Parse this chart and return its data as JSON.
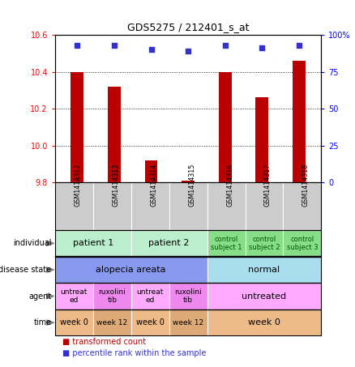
{
  "title": "GDS5275 / 212401_s_at",
  "samples": [
    "GSM1414312",
    "GSM1414313",
    "GSM1414314",
    "GSM1414315",
    "GSM1414316",
    "GSM1414317",
    "GSM1414318"
  ],
  "bar_values": [
    10.4,
    10.32,
    9.92,
    9.81,
    10.4,
    10.26,
    10.46
  ],
  "percentile_values": [
    93,
    93,
    90,
    89,
    93,
    91,
    93
  ],
  "ylim_left": [
    9.8,
    10.6
  ],
  "ylim_right": [
    0,
    100
  ],
  "yticks_left": [
    9.8,
    10.0,
    10.2,
    10.4,
    10.6
  ],
  "yticks_right": [
    0,
    25,
    50,
    75,
    100
  ],
  "ytick_labels_right": [
    "0",
    "25",
    "50",
    "75",
    "100%"
  ],
  "bar_color": "#bb0000",
  "dot_color": "#3333cc",
  "background_color": "#ffffff",
  "xticklabel_bg": "#cccccc",
  "annotation_rows": [
    {
      "label": "individual",
      "cells": [
        {
          "text": "patient 1",
          "span": 2,
          "color": "#bbeecc",
          "text_color": "#000000",
          "fontsize": 8
        },
        {
          "text": "patient 2",
          "span": 2,
          "color": "#bbeecc",
          "text_color": "#000000",
          "fontsize": 8
        },
        {
          "text": "control\nsubject 1",
          "span": 1,
          "color": "#88dd88",
          "text_color": "#005500",
          "fontsize": 6
        },
        {
          "text": "control\nsubject 2",
          "span": 1,
          "color": "#88dd88",
          "text_color": "#005500",
          "fontsize": 6
        },
        {
          "text": "control\nsubject 3",
          "span": 1,
          "color": "#88dd88",
          "text_color": "#005500",
          "fontsize": 6
        }
      ]
    },
    {
      "label": "disease state",
      "cells": [
        {
          "text": "alopecia areata",
          "span": 4,
          "color": "#8899ee",
          "text_color": "#000000",
          "fontsize": 8
        },
        {
          "text": "normal",
          "span": 3,
          "color": "#aaddee",
          "text_color": "#000000",
          "fontsize": 8
        }
      ]
    },
    {
      "label": "agent",
      "cells": [
        {
          "text": "untreat\ned",
          "span": 1,
          "color": "#ffaaff",
          "text_color": "#000000",
          "fontsize": 6.5
        },
        {
          "text": "ruxolini\ntib",
          "span": 1,
          "color": "#ee88ee",
          "text_color": "#000000",
          "fontsize": 6.5
        },
        {
          "text": "untreat\ned",
          "span": 1,
          "color": "#ffaaff",
          "text_color": "#000000",
          "fontsize": 6.5
        },
        {
          "text": "ruxolini\ntib",
          "span": 1,
          "color": "#ee88ee",
          "text_color": "#000000",
          "fontsize": 6.5
        },
        {
          "text": "untreated",
          "span": 3,
          "color": "#ffaaff",
          "text_color": "#000000",
          "fontsize": 8
        }
      ]
    },
    {
      "label": "time",
      "cells": [
        {
          "text": "week 0",
          "span": 1,
          "color": "#eebb88",
          "text_color": "#000000",
          "fontsize": 7
        },
        {
          "text": "week 12",
          "span": 1,
          "color": "#ddaa77",
          "text_color": "#000000",
          "fontsize": 6.5
        },
        {
          "text": "week 0",
          "span": 1,
          "color": "#eebb88",
          "text_color": "#000000",
          "fontsize": 7
        },
        {
          "text": "week 12",
          "span": 1,
          "color": "#ddaa77",
          "text_color": "#000000",
          "fontsize": 6.5
        },
        {
          "text": "week 0",
          "span": 3,
          "color": "#eebb88",
          "text_color": "#000000",
          "fontsize": 8
        }
      ]
    }
  ],
  "legend": [
    {
      "color": "#bb0000",
      "label": "transformed count"
    },
    {
      "color": "#3333cc",
      "label": "percentile rank within the sample"
    }
  ]
}
